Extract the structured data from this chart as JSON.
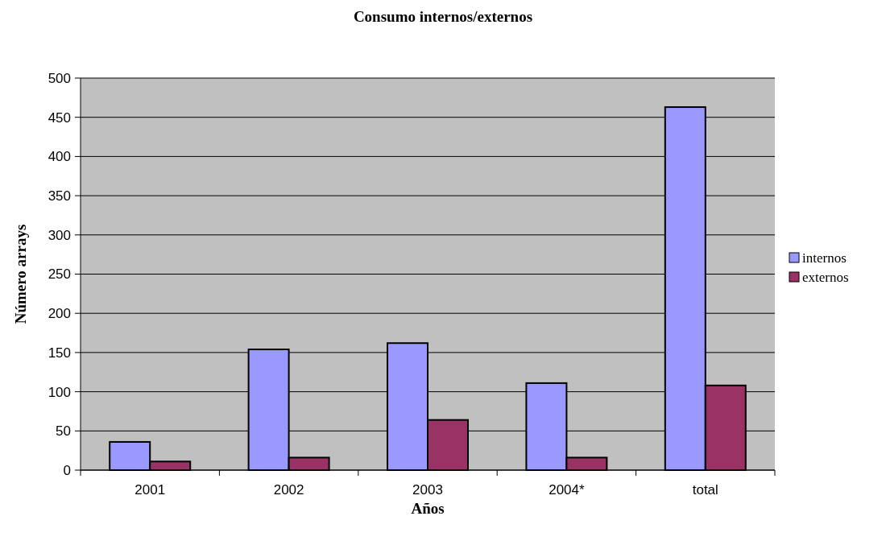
{
  "chart_data": {
    "type": "bar",
    "title": "Consumo internos/externos",
    "xlabel": "Años",
    "ylabel": "Número arrays",
    "categories": [
      "2001",
      "2002",
      "2003",
      "2004*",
      "total"
    ],
    "series": [
      {
        "name": "internos",
        "color": "#9999ff",
        "values": [
          36,
          154,
          162,
          111,
          463
        ]
      },
      {
        "name": "externos",
        "color": "#993366",
        "values": [
          11,
          16,
          64,
          16,
          108
        ]
      }
    ],
    "ylim": [
      0,
      500
    ],
    "yticks": [
      0,
      50,
      100,
      150,
      200,
      250,
      300,
      350,
      400,
      450,
      500
    ],
    "grid": "y",
    "legend": "right"
  }
}
